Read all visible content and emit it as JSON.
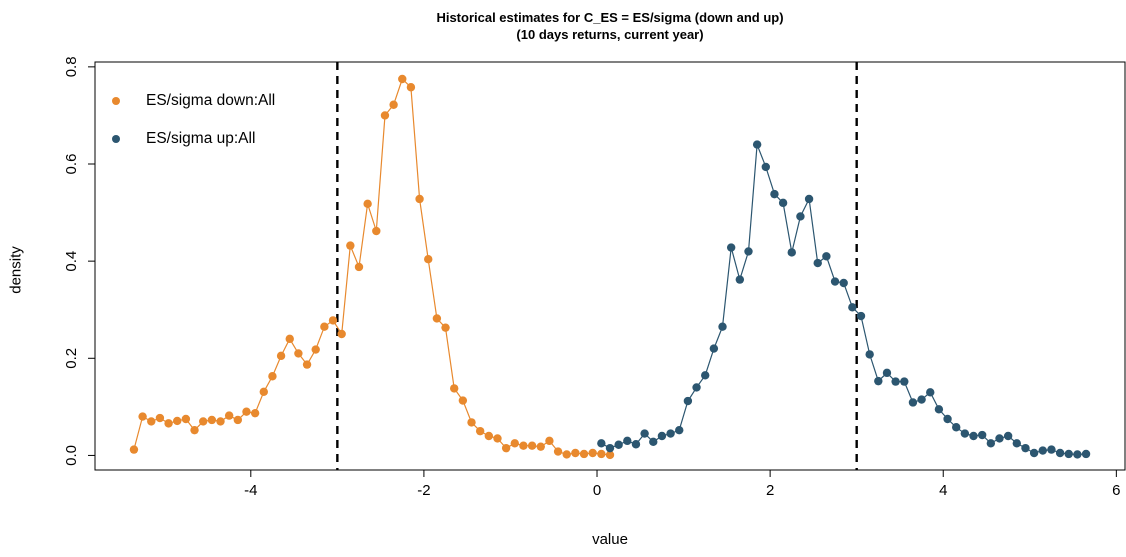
{
  "chart_data": {
    "type": "scatter",
    "title": "Historical estimates for C_ES = ES/sigma (down and up)",
    "subtitle": "(10 days returns, current year)",
    "xlabel": "value",
    "ylabel": "density",
    "xlim": [
      -5.8,
      6.1
    ],
    "ylim": [
      -0.03,
      0.81
    ],
    "xticks": [
      -4,
      -2,
      0,
      2,
      4,
      6
    ],
    "xtick_labels": [
      "-4",
      "-2",
      "0",
      "2",
      "4",
      "6"
    ],
    "yticks": [
      0.0,
      0.2,
      0.4,
      0.6,
      0.8
    ],
    "ytick_labels": [
      "0.0",
      "0.2",
      "0.4",
      "0.6",
      "0.8"
    ],
    "vlines": [
      -3,
      3
    ],
    "grid": false,
    "legend_position": "top-left",
    "series": [
      {
        "name": "ES/sigma down:All",
        "color": "#e8892e",
        "x": [
          -5.35,
          -5.25,
          -5.15,
          -5.05,
          -4.95,
          -4.85,
          -4.75,
          -4.65,
          -4.55,
          -4.45,
          -4.35,
          -4.25,
          -4.15,
          -4.05,
          -3.95,
          -3.85,
          -3.75,
          -3.65,
          -3.55,
          -3.45,
          -3.35,
          -3.25,
          -3.15,
          -3.05,
          -2.95,
          -2.85,
          -2.75,
          -2.65,
          -2.55,
          -2.45,
          -2.35,
          -2.25,
          -2.15,
          -2.05,
          -1.95,
          -1.85,
          -1.75,
          -1.65,
          -1.55,
          -1.45,
          -1.35,
          -1.25,
          -1.15,
          -1.05,
          -0.95,
          -0.85,
          -0.75,
          -0.65,
          -0.55,
          -0.45,
          -0.35,
          -0.25,
          -0.15,
          -0.05,
          0.05,
          0.15
        ],
        "y": [
          0.012,
          0.08,
          0.07,
          0.077,
          0.066,
          0.071,
          0.075,
          0.052,
          0.07,
          0.073,
          0.07,
          0.082,
          0.073,
          0.09,
          0.087,
          0.131,
          0.163,
          0.205,
          0.24,
          0.21,
          0.187,
          0.218,
          0.265,
          0.278,
          0.25,
          0.432,
          0.388,
          0.518,
          0.462,
          0.7,
          0.722,
          0.775,
          0.758,
          0.528,
          0.404,
          0.282,
          0.263,
          0.138,
          0.113,
          0.068,
          0.05,
          0.04,
          0.035,
          0.015,
          0.025,
          0.02,
          0.02,
          0.018,
          0.03,
          0.008,
          0.002,
          0.005,
          0.003,
          0.005,
          0.003,
          0.001
        ]
      },
      {
        "name": "ES/sigma up:All",
        "color": "#2c5670",
        "x": [
          0.05,
          0.15,
          0.25,
          0.35,
          0.45,
          0.55,
          0.65,
          0.75,
          0.85,
          0.95,
          1.05,
          1.15,
          1.25,
          1.35,
          1.45,
          1.55,
          1.65,
          1.75,
          1.85,
          1.95,
          2.05,
          2.15,
          2.25,
          2.35,
          2.45,
          2.55,
          2.65,
          2.75,
          2.85,
          2.95,
          3.05,
          3.15,
          3.25,
          3.35,
          3.45,
          3.55,
          3.65,
          3.75,
          3.85,
          3.95,
          4.05,
          4.15,
          4.25,
          4.35,
          4.45,
          4.55,
          4.65,
          4.75,
          4.85,
          4.95,
          5.05,
          5.15,
          5.25,
          5.35,
          5.45,
          5.55,
          5.65
        ],
        "y": [
          0.025,
          0.015,
          0.022,
          0.03,
          0.023,
          0.045,
          0.028,
          0.04,
          0.045,
          0.052,
          0.112,
          0.14,
          0.165,
          0.22,
          0.265,
          0.428,
          0.362,
          0.42,
          0.64,
          0.594,
          0.538,
          0.52,
          0.418,
          0.492,
          0.528,
          0.396,
          0.41,
          0.358,
          0.355,
          0.305,
          0.287,
          0.208,
          0.153,
          0.17,
          0.152,
          0.152,
          0.109,
          0.115,
          0.13,
          0.095,
          0.075,
          0.058,
          0.045,
          0.04,
          0.042,
          0.025,
          0.035,
          0.04,
          0.025,
          0.015,
          0.005,
          0.01,
          0.012,
          0.005,
          0.003,
          0.002,
          0.003
        ]
      }
    ]
  }
}
